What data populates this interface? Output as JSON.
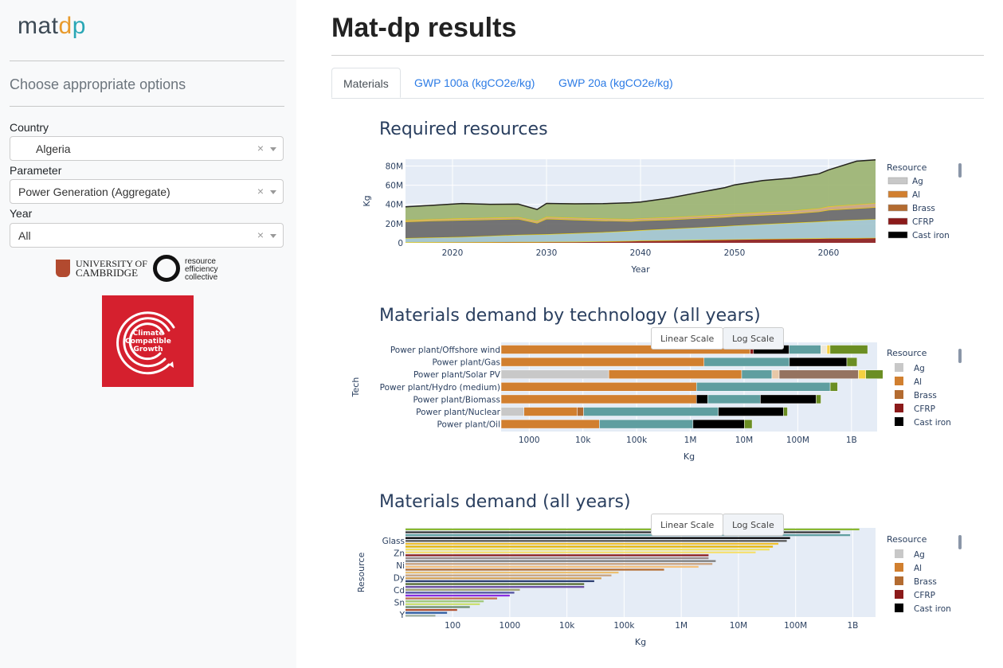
{
  "sidebar": {
    "logo": {
      "a": "mat",
      "b": "d",
      "c": "p"
    },
    "heading": "Choose appropriate options",
    "country": {
      "label": "Country",
      "value": "Algeria"
    },
    "parameter": {
      "label": "Parameter",
      "value": "Power Generation (Aggregate)"
    },
    "year": {
      "label": "Year",
      "value": "All"
    },
    "clear_glyph": "×",
    "cambridge": {
      "line1": "UNIVERSITY OF",
      "line2": "CAMBRIDGE"
    },
    "rec": {
      "line1": "resource",
      "line2": "efficiency",
      "line3": "collective"
    },
    "ccg_text": "Climate Compatible Growth"
  },
  "main": {
    "title": "Mat-dp results",
    "tabs": [
      {
        "label": "Materials"
      },
      {
        "label": "GWP 100a (kgCO2e/kg)"
      },
      {
        "label": "GWP 20a (kgCO2e/kg)"
      }
    ]
  },
  "buttons": {
    "linear": "Linear Scale",
    "log": "Log Scale"
  },
  "legend_title": "Resource",
  "legend_items": [
    {
      "name": "Ag",
      "color": "#c8c8c8"
    },
    {
      "name": "Al",
      "color": "#d17f2f"
    },
    {
      "name": "Brass",
      "color": "#b36b30"
    },
    {
      "name": "CFRP",
      "color": "#8b1a1a"
    },
    {
      "name": "Cast iron",
      "color": "#000000"
    }
  ],
  "chart_data": [
    {
      "type": "area",
      "title": "Required resources",
      "xlabel": "Year",
      "ylabel": "Kg",
      "xlim": [
        2015,
        2065
      ],
      "ylim": [
        0,
        87000000
      ],
      "x_ticks": [
        "2020",
        "2030",
        "2040",
        "2050",
        "2060"
      ],
      "y_ticks": [
        "0",
        "20M",
        "40M",
        "60M",
        "80M"
      ],
      "x": [
        2015,
        2018,
        2021,
        2024,
        2027,
        2029,
        2030,
        2033,
        2036,
        2039,
        2040,
        2043,
        2046,
        2049,
        2050,
        2053,
        2056,
        2059,
        2060,
        2063,
        2065
      ],
      "series": [
        {
          "color": "#8b1a1a",
          "values": [
            500000,
            600000,
            700000,
            800000,
            900000,
            950000,
            1000000,
            1200000,
            1500000,
            2000000,
            2200000,
            2600000,
            3000000,
            3400000,
            3600000,
            4000000,
            4300000,
            4600000,
            4800000,
            5000000,
            5200000
          ]
        },
        {
          "color": "#9fc3cc",
          "values": [
            4500000,
            5000000,
            5500000,
            6500000,
            7500000,
            7800000,
            8000000,
            8800000,
            9600000,
            10500000,
            11000000,
            12000000,
            13000000,
            14000000,
            14500000,
            15500000,
            16500000,
            17500000,
            18000000,
            19000000,
            19500000
          ]
        },
        {
          "color": "#666666",
          "values": [
            17000000,
            17500000,
            17500000,
            17000000,
            16500000,
            12000000,
            16000000,
            14000000,
            12000000,
            10000000,
            10000000,
            9500000,
            9500000,
            9500000,
            9500000,
            9500000,
            9500000,
            10500000,
            11500000,
            12000000,
            12300000
          ]
        },
        {
          "color": "#c9a27e",
          "values": [
            1500000,
            1600000,
            1700000,
            1800000,
            1900000,
            2000000,
            2000000,
            2100000,
            2200000,
            2300000,
            2300000,
            2400000,
            2500000,
            2600000,
            2700000,
            2900000,
            3100000,
            3300000,
            3600000,
            4000000,
            4300000
          ]
        },
        {
          "color": "#9ab26f",
          "values": [
            14000000,
            14500000,
            15500000,
            14000000,
            13500000,
            12000000,
            14000000,
            14500000,
            15500000,
            17000000,
            17000000,
            20000000,
            24000000,
            28000000,
            30000000,
            33000000,
            34000000,
            36000000,
            38000000,
            45000000,
            45000000
          ]
        }
      ]
    },
    {
      "type": "bar",
      "title": "Materials demand by technology (all years)",
      "xlabel": "Kg",
      "ylabel": "Tech",
      "x_scale": "log",
      "xlim": [
        300,
        3000000000
      ],
      "x_ticks": [
        "1000",
        "10k",
        "100k",
        "1M",
        "10M",
        "100M",
        "1B"
      ],
      "categories": [
        "Power plant/Offshore wind",
        "Power plant/Gas",
        "Power plant/Solar PV",
        "Power plant/Hydro (medium)",
        "Power plant/Biomass",
        "Power plant/Nuclear",
        "Power plant/Oil"
      ],
      "segments": [
        [
          {
            "c": "#d17f2f",
            "v": 13000000
          },
          {
            "c": "#8b1a1a",
            "v": 2000000
          },
          {
            "c": "#000000",
            "v": 54000000
          },
          {
            "c": "#5f9ea0",
            "v": 200000000
          },
          {
            "c": "#ede8d9",
            "v": 80000000
          },
          {
            "c": "#f5d142",
            "v": 50000000
          },
          {
            "c": "#6b8e23",
            "v": 1600000000
          }
        ],
        [
          {
            "c": "#d17f2f",
            "v": 1800000
          },
          {
            "c": "#5f9ea0",
            "v": 68000000
          },
          {
            "c": "#000000",
            "v": 750000000
          },
          {
            "c": "#6b8e23",
            "v": 450000000
          }
        ],
        [
          {
            "c": "#c8c8c8",
            "v": 30000
          },
          {
            "c": "#d17f2f",
            "v": 9000000
          },
          {
            "c": "#5f9ea0",
            "v": 24000000
          },
          {
            "c": "#e8c8a8",
            "v": 12000000
          },
          {
            "c": "#957360",
            "v": 1300000000
          },
          {
            "c": "#f5d142",
            "v": 500000000
          },
          {
            "c": "#6b8e23",
            "v": 2000000000
          }
        ],
        [
          {
            "c": "#d17f2f",
            "v": 1300000
          },
          {
            "c": "#5f9ea0",
            "v": 400000000
          },
          {
            "c": "#6b8e23",
            "v": 150000000
          }
        ],
        [
          {
            "c": "#d17f2f",
            "v": 1300000
          },
          {
            "c": "#000000",
            "v": 800000
          },
          {
            "c": "#5f9ea0",
            "v": 18000000
          },
          {
            "c": "#000000",
            "v": 200000000
          },
          {
            "c": "#6b8e23",
            "v": 50000000
          }
        ],
        [
          {
            "c": "#c8c8c8",
            "v": 500
          },
          {
            "c": "#d17f2f",
            "v": 7000
          },
          {
            "c": "#b36b30",
            "v": 2500
          },
          {
            "c": "#5f9ea0",
            "v": 3300000
          },
          {
            "c": "#000000",
            "v": 51000000
          },
          {
            "c": "#6b8e23",
            "v": 10000000
          }
        ],
        [
          {
            "c": "#d17f2f",
            "v": 20000
          },
          {
            "c": "#5f9ea0",
            "v": 1100000
          },
          {
            "c": "#000000",
            "v": 9000000
          },
          {
            "c": "#6b8e23",
            "v": 4000000
          }
        ]
      ]
    },
    {
      "type": "bar",
      "title": "Materials demand (all years)",
      "xlabel": "Kg",
      "ylabel": "Resource",
      "x_scale": "log",
      "xlim": [
        15,
        2500000000
      ],
      "x_ticks": [
        "100",
        "1000",
        "10k",
        "100k",
        "1M",
        "10M",
        "100M",
        "1B"
      ],
      "tick_labels": [
        "Glass",
        "Zn",
        "Ni",
        "Dy",
        "Cd",
        "Sn",
        "Y"
      ],
      "values": [
        1300000000,
        600000000,
        900000000,
        80000000,
        70000000,
        50000000,
        40000000,
        35000000,
        20000000,
        3000000,
        3000000,
        4000000,
        3500000,
        2000000,
        500000,
        80000,
        60000,
        40000,
        30000,
        20000,
        20000,
        1500,
        1200,
        1000,
        600,
        350,
        300,
        200,
        120,
        80,
        50
      ],
      "colors": [
        "#8ab830",
        "#333333",
        "#5f9ea0",
        "#000000",
        "#555555",
        "#f0c030",
        "#e6b400",
        "#f2e15c",
        "#f5e070",
        "#8b1a1a",
        "#9a8a8a",
        "#7a7a7a",
        "#c9a27e",
        "#f5c07a",
        "#b36b30",
        "#ecc070",
        "#c9a27e",
        "#d4a050",
        "#2c3e70",
        "#556b2f",
        "#6a4ca0",
        "#a0a070",
        "#5050a0",
        "#8a2be2",
        "#c07050",
        "#a0c878",
        "#cbe070",
        "#6a8d6a",
        "#b05030",
        "#2c5aa0",
        "#a0b0a0"
      ]
    }
  ]
}
